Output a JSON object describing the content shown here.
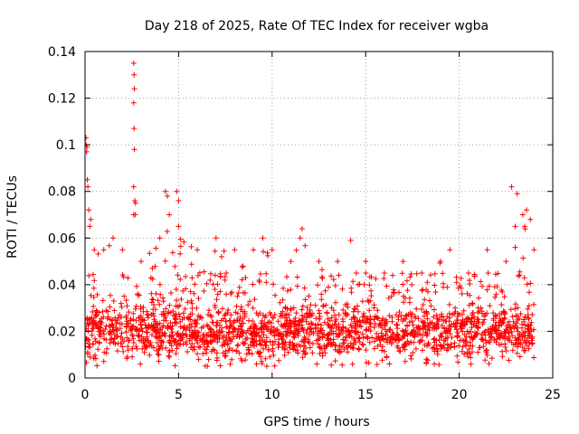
{
  "chart_data": {
    "type": "scatter",
    "title": "Day 218 of 2025, Rate Of TEC Index for receiver wgba",
    "xlabel": "GPS time / hours",
    "ylabel": "ROTI / TECUs",
    "xlim": [
      0,
      25
    ],
    "ylim": [
      0,
      0.14
    ],
    "grid": true,
    "marker": "+",
    "x_ticks": [
      0,
      5,
      10,
      15,
      20,
      25
    ],
    "y_ticks": [
      0,
      0.02,
      0.04,
      0.06,
      0.08,
      0.1,
      0.12,
      0.14
    ],
    "x_tick_labels": [
      "0",
      "5",
      "10",
      "15",
      "20",
      "25"
    ],
    "y_tick_labels": [
      "0",
      "0.02",
      "0.04",
      "0.06",
      "0.08",
      "0.1",
      "0.12",
      "0.14"
    ],
    "series": [
      {
        "name": "ROTI",
        "color": "#ff0000",
        "dense_band": {
          "x_range": [
            0,
            24
          ],
          "y_min": 0.005,
          "y_typical_max": 0.045
        },
        "upper_envelope": {
          "x": [
            0.0,
            0.25,
            0.5,
            1.0,
            1.5,
            2.0,
            2.6,
            3.0,
            4.0,
            4.5,
            5.0,
            6.0,
            7.0,
            8.0,
            9.0,
            10.0,
            11.0,
            11.5,
            12.5,
            13.5,
            14.5,
            15.0,
            16.0,
            17.0,
            18.0,
            19.0,
            19.5,
            20.5,
            21.5,
            22.5,
            23.0,
            23.5,
            24.0
          ],
          "y": [
            0.06,
            0.065,
            0.055,
            0.055,
            0.06,
            0.055,
            0.07,
            0.05,
            0.06,
            0.07,
            0.065,
            0.055,
            0.06,
            0.055,
            0.055,
            0.055,
            0.05,
            0.06,
            0.05,
            0.05,
            0.045,
            0.05,
            0.045,
            0.05,
            0.045,
            0.05,
            0.055,
            0.045,
            0.055,
            0.05,
            0.065,
            0.065,
            0.055
          ]
        },
        "outliers": {
          "x": [
            0.05,
            0.06,
            0.08,
            0.1,
            0.12,
            0.15,
            0.2,
            0.3,
            2.6,
            2.62,
            2.64,
            2.6,
            2.62,
            2.64,
            2.6,
            2.66,
            2.7,
            2.68,
            4.3,
            4.4,
            4.9,
            5.0,
            9.5,
            11.6,
            14.2,
            22.8,
            23.1,
            23.4,
            23.6,
            23.8
          ],
          "y": [
            0.103,
            0.1,
            0.097,
            0.099,
            0.085,
            0.082,
            0.072,
            0.068,
            0.135,
            0.13,
            0.124,
            0.118,
            0.107,
            0.098,
            0.082,
            0.076,
            0.075,
            0.07,
            0.08,
            0.078,
            0.08,
            0.076,
            0.06,
            0.064,
            0.059,
            0.082,
            0.079,
            0.07,
            0.072,
            0.068
          ]
        }
      }
    ]
  }
}
